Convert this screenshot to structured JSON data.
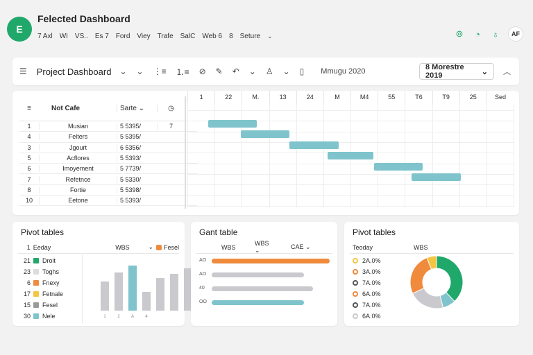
{
  "app": {
    "logo_text": "E",
    "title": "Felected Dashboard",
    "menu": [
      "7 Axl",
      "WI",
      "VS..",
      "Es 7",
      "Ford",
      "Viey",
      "Trafe",
      "SalC",
      "Web 6",
      "8",
      "Seture"
    ],
    "brand_color": "#1fa86a",
    "avatar": "AF"
  },
  "toolbar": {
    "title": "Project Dashboard",
    "date_label": "Mmugu 2020",
    "date_select": "8 Morestre 2019"
  },
  "gantt": {
    "col_no": "",
    "col_name": "Not Cafe",
    "col_date": "Sarte",
    "col_extra": "",
    "timeline_headers": [
      "1",
      "22",
      "M.",
      "13",
      "24",
      "M",
      "M4",
      "55",
      "T6",
      "T9",
      "25",
      "Sed"
    ],
    "tasks": [
      {
        "no": "1",
        "name": "Musian",
        "date": "5 5395/",
        "extra": "7"
      },
      {
        "no": "4",
        "name": "Felters",
        "date": "5 5395/",
        "extra": ""
      },
      {
        "no": "3",
        "name": "Jgourt",
        "date": "6 5356/",
        "extra": ""
      },
      {
        "no": "5",
        "name": "Acflores",
        "date": "5 5393/",
        "extra": ""
      },
      {
        "no": "6",
        "name": "Imoyement",
        "date": "5 7739/",
        "extra": ""
      },
      {
        "no": "7",
        "name": "Refetnce",
        "date": "5 5330/",
        "extra": ""
      },
      {
        "no": "8",
        "name": "Fortie",
        "date": "5 5398/",
        "extra": ""
      },
      {
        "no": "10",
        "name": "Eetone",
        "date": "5 5393/",
        "extra": ""
      }
    ],
    "bar_color": "#7fc4cc",
    "bars": [
      {
        "start": 0.5,
        "end": 2.3
      },
      {
        "start": 1.7,
        "end": 3.5
      },
      {
        "start": 3.5,
        "end": 5.3
      },
      {
        "start": 4.9,
        "end": 6.6
      },
      {
        "start": 6.6,
        "end": 8.4
      },
      {
        "start": 8.0,
        "end": 9.8
      }
    ]
  },
  "pivot1": {
    "title": "Pivot tables",
    "head_no": "1",
    "head_name": "Eeday",
    "head_wbs": "WBS",
    "head_tag": "Fesel",
    "items": [
      {
        "num": "21",
        "label": "Droit",
        "color": "#1fa86a"
      },
      {
        "num": "23",
        "label": "Toghs",
        "color": "#dddddd"
      },
      {
        "num": "6",
        "label": "Fnexy",
        "color": "#f08a3c"
      },
      {
        "num": "17",
        "label": "Fetnale",
        "color": "#f5c542"
      },
      {
        "num": "15",
        "label": "Fesel",
        "color": "#9a9a9a"
      },
      {
        "num": "30",
        "label": "Nele",
        "color": "#7fc4cc"
      }
    ],
    "bars": [
      {
        "value": 0.55,
        "color": "#c9c9ce"
      },
      {
        "value": 0.72,
        "color": "#c9c9ce"
      },
      {
        "value": 0.85,
        "color": "#7fc4cc"
      },
      {
        "value": 0.35,
        "color": "#c9c9ce"
      },
      {
        "value": 0.62,
        "color": "#c9c9ce"
      },
      {
        "value": 0.7,
        "color": "#c9c9ce"
      },
      {
        "value": 0.8,
        "color": "#c9c9ce"
      }
    ],
    "ticks": [
      "1",
      "2",
      "A",
      "4",
      "",
      "",
      ""
    ]
  },
  "gantt_table": {
    "title": "Gant table",
    "h1": "WBS",
    "h2": "WBS",
    "h3": "CAE",
    "rows": [
      {
        "label": "AO",
        "value": 1.0,
        "color": "#f08a3c"
      },
      {
        "label": "AO",
        "value": 0.78,
        "color": "#c9c9ce"
      },
      {
        "label": "40",
        "value": 0.86,
        "color": "#c9c9ce"
      },
      {
        "label": "OO",
        "value": 0.78,
        "color": "#7fc4cc"
      }
    ]
  },
  "pivot2": {
    "title": "Pivot tables",
    "head_name": "Teoday",
    "head_wbs": "WBS",
    "items": [
      {
        "label": "2A.0%",
        "color": "#f5c542"
      },
      {
        "label": "3A.0%",
        "color": "#f08a3c"
      },
      {
        "label": "7A.0%",
        "color": "#555555"
      },
      {
        "label": "6A.0%",
        "color": "#f08a3c"
      },
      {
        "label": "7A.0%",
        "color": "#555555"
      },
      {
        "label": "6A.0%",
        "color": "#c9c9ce"
      }
    ],
    "donut": [
      {
        "value": 38,
        "color": "#1fa86a"
      },
      {
        "value": 8,
        "color": "#7fc4cc"
      },
      {
        "value": 22,
        "color": "#c9c9ce"
      },
      {
        "value": 26,
        "color": "#f08a3c"
      },
      {
        "value": 6,
        "color": "#f5c542"
      }
    ]
  }
}
